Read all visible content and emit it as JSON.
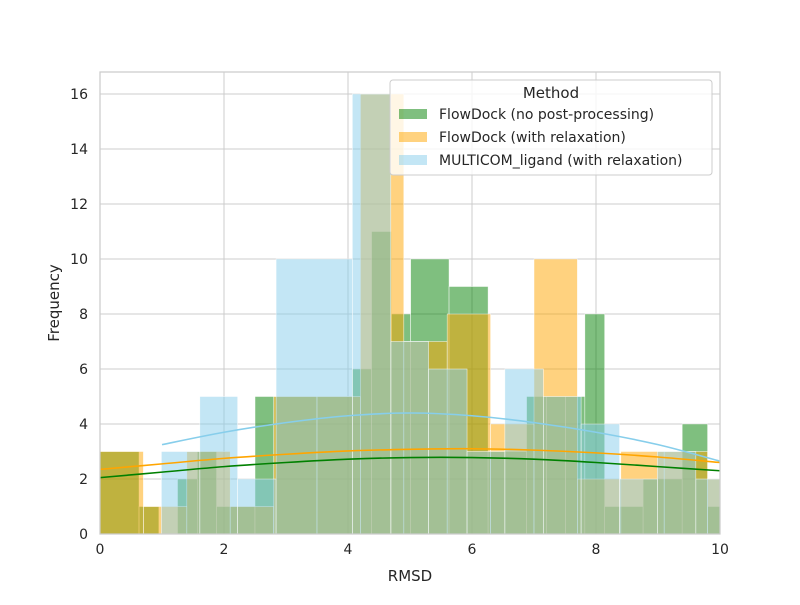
{
  "chart_data": {
    "type": "histogram",
    "title": "",
    "xlabel": "RMSD",
    "ylabel": "Frequency",
    "xlim": [
      0,
      10
    ],
    "ylim": [
      0,
      16.8
    ],
    "xticks": [
      0,
      2,
      4,
      6,
      8,
      10
    ],
    "yticks": [
      0,
      2,
      4,
      6,
      8,
      10,
      12,
      14,
      16
    ],
    "grid": true,
    "legend": {
      "title": "Method",
      "placement": "top-right"
    },
    "series": [
      {
        "name": "FlowDock (no post-processing)",
        "color": "#008000",
        "bars": [
          {
            "x0": 0.0,
            "x1": 0.63,
            "h": 3
          },
          {
            "x0": 0.63,
            "x1": 0.95,
            "h": 1
          },
          {
            "x0": 1.25,
            "x1": 1.57,
            "h": 2
          },
          {
            "x0": 1.57,
            "x1": 1.88,
            "h": 3
          },
          {
            "x0": 1.88,
            "x1": 2.5,
            "h": 1
          },
          {
            "x0": 2.5,
            "x1": 2.82,
            "h": 5
          },
          {
            "x0": 2.82,
            "x1": 4.07,
            "h": 5
          },
          {
            "x0": 4.07,
            "x1": 4.38,
            "h": 6
          },
          {
            "x0": 4.38,
            "x1": 4.7,
            "h": 11
          },
          {
            "x0": 4.7,
            "x1": 5.01,
            "h": 8
          },
          {
            "x0": 5.01,
            "x1": 5.63,
            "h": 10
          },
          {
            "x0": 5.63,
            "x1": 6.26,
            "h": 9
          },
          {
            "x0": 6.26,
            "x1": 6.88,
            "h": 3
          },
          {
            "x0": 6.88,
            "x1": 7.2,
            "h": 5
          },
          {
            "x0": 7.2,
            "x1": 7.51,
            "h": 5
          },
          {
            "x0": 7.51,
            "x1": 7.82,
            "h": 5
          },
          {
            "x0": 7.82,
            "x1": 8.14,
            "h": 8
          },
          {
            "x0": 8.14,
            "x1": 8.76,
            "h": 1
          },
          {
            "x0": 8.76,
            "x1": 9.39,
            "h": 2
          },
          {
            "x0": 9.39,
            "x1": 9.8,
            "h": 4
          },
          {
            "x0": 9.8,
            "x1": 10.0,
            "h": 1
          }
        ],
        "kde_x": [
          0,
          1,
          2,
          3,
          4,
          5,
          6,
          7,
          8,
          9,
          10
        ],
        "kde_y": [
          2.05,
          2.25,
          2.45,
          2.6,
          2.72,
          2.78,
          2.78,
          2.72,
          2.6,
          2.45,
          2.3
        ]
      },
      {
        "name": "FlowDock (with relaxation)",
        "color": "#FFA500",
        "bars": [
          {
            "x0": 0.0,
            "x1": 0.7,
            "h": 3
          },
          {
            "x0": 0.7,
            "x1": 1.4,
            "h": 1
          },
          {
            "x0": 1.4,
            "x1": 2.1,
            "h": 3
          },
          {
            "x0": 2.1,
            "x1": 2.8,
            "h": 1
          },
          {
            "x0": 2.8,
            "x1": 3.5,
            "h": 5
          },
          {
            "x0": 3.5,
            "x1": 4.2,
            "h": 5
          },
          {
            "x0": 4.2,
            "x1": 4.9,
            "h": 16
          },
          {
            "x0": 4.9,
            "x1": 5.6,
            "h": 7
          },
          {
            "x0": 5.6,
            "x1": 6.3,
            "h": 8
          },
          {
            "x0": 6.3,
            "x1": 7.0,
            "h": 4
          },
          {
            "x0": 7.0,
            "x1": 7.7,
            "h": 10
          },
          {
            "x0": 7.7,
            "x1": 8.4,
            "h": 2
          },
          {
            "x0": 8.4,
            "x1": 9.1,
            "h": 3
          },
          {
            "x0": 9.1,
            "x1": 9.8,
            "h": 3
          },
          {
            "x0": 9.8,
            "x1": 10.0,
            "h": 2
          }
        ],
        "kde_x": [
          0,
          1,
          2,
          3,
          4,
          5,
          6,
          7,
          8,
          9,
          10
        ],
        "kde_y": [
          2.35,
          2.55,
          2.75,
          2.9,
          3.02,
          3.08,
          3.1,
          3.05,
          2.95,
          2.8,
          2.6
        ]
      },
      {
        "name": "MULTICOM_ligand (with relaxation)",
        "color": "#87CEEB",
        "bars": [
          {
            "x0": 0.99,
            "x1": 1.61,
            "h": 3
          },
          {
            "x0": 1.61,
            "x1": 2.22,
            "h": 5
          },
          {
            "x0": 2.22,
            "x1": 2.84,
            "h": 2
          },
          {
            "x0": 2.84,
            "x1": 4.07,
            "h": 10
          },
          {
            "x0": 4.07,
            "x1": 4.69,
            "h": 16
          },
          {
            "x0": 4.69,
            "x1": 5.3,
            "h": 7
          },
          {
            "x0": 5.3,
            "x1": 5.92,
            "h": 6
          },
          {
            "x0": 5.92,
            "x1": 6.53,
            "h": 3
          },
          {
            "x0": 6.53,
            "x1": 7.15,
            "h": 6
          },
          {
            "x0": 7.15,
            "x1": 7.76,
            "h": 5
          },
          {
            "x0": 7.76,
            "x1": 8.38,
            "h": 4
          },
          {
            "x0": 8.38,
            "x1": 8.99,
            "h": 2
          },
          {
            "x0": 8.99,
            "x1": 9.61,
            "h": 3
          },
          {
            "x0": 9.61,
            "x1": 10.0,
            "h": 2
          }
        ],
        "kde_x": [
          1,
          2,
          3,
          4,
          5,
          6,
          7,
          8,
          9,
          10
        ],
        "kde_y": [
          3.25,
          3.7,
          4.05,
          4.3,
          4.4,
          4.3,
          4.05,
          3.7,
          3.25,
          2.65
        ]
      }
    ]
  }
}
